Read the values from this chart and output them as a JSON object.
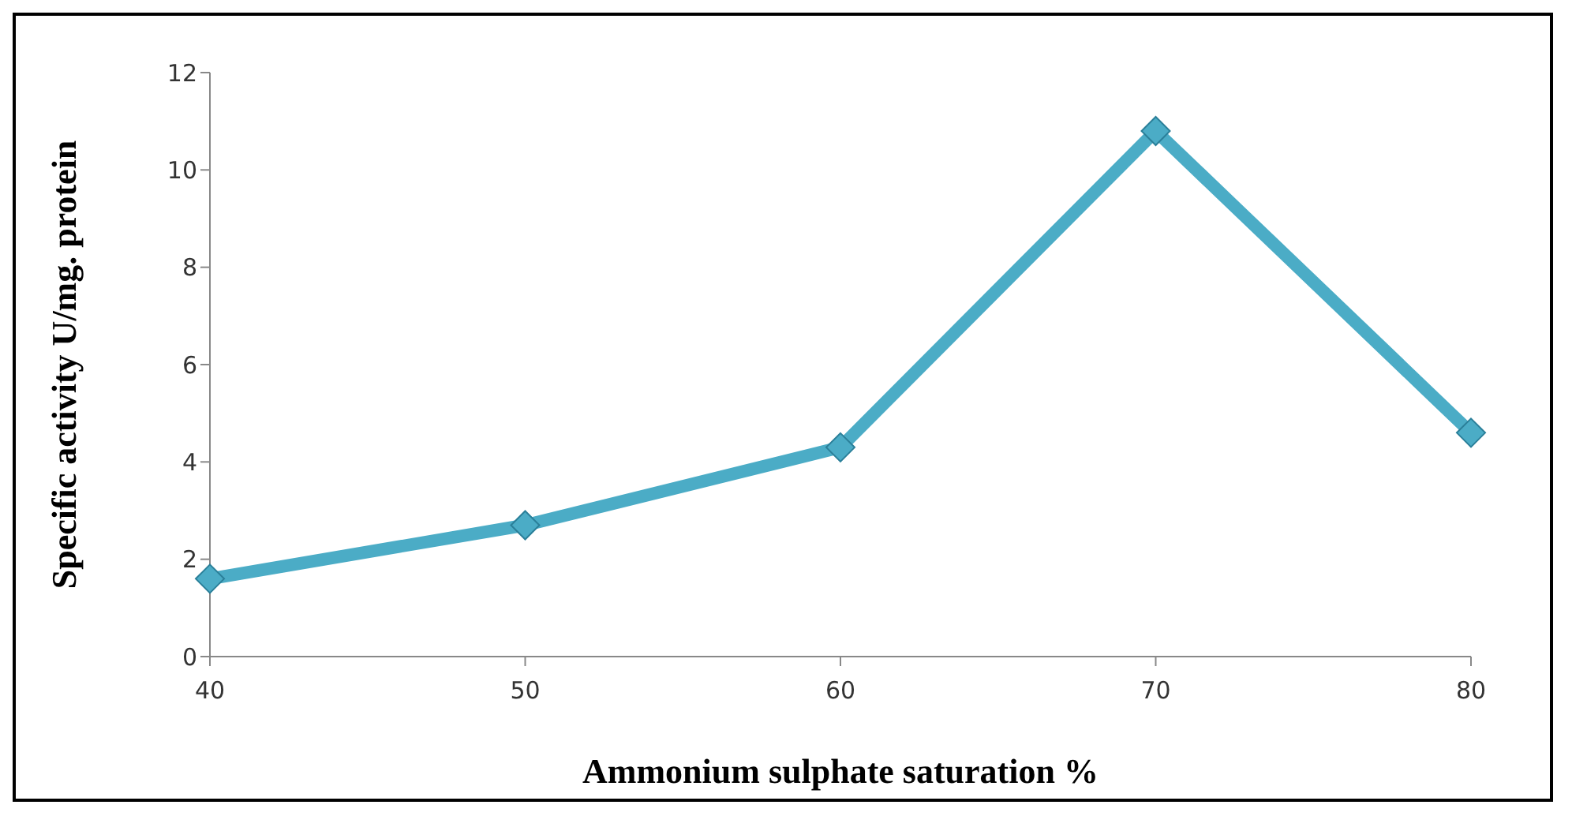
{
  "chart_data": {
    "type": "line",
    "xlabel": "Ammonium sulphate saturation %",
    "ylabel": "Specific activity U/mg. protein",
    "categories": [
      "40",
      "50",
      "60",
      "70",
      "80"
    ],
    "series": [
      {
        "color": "#4bacc6",
        "values": [
          1.6,
          2.7,
          4.3,
          10.8,
          4.6
        ]
      }
    ],
    "ylim": [
      0,
      12
    ],
    "yticks": [
      0,
      2,
      4,
      6,
      8,
      10,
      12
    ],
    "grid": false,
    "legend": false,
    "marker": "diamond",
    "line_style": "solid"
  }
}
